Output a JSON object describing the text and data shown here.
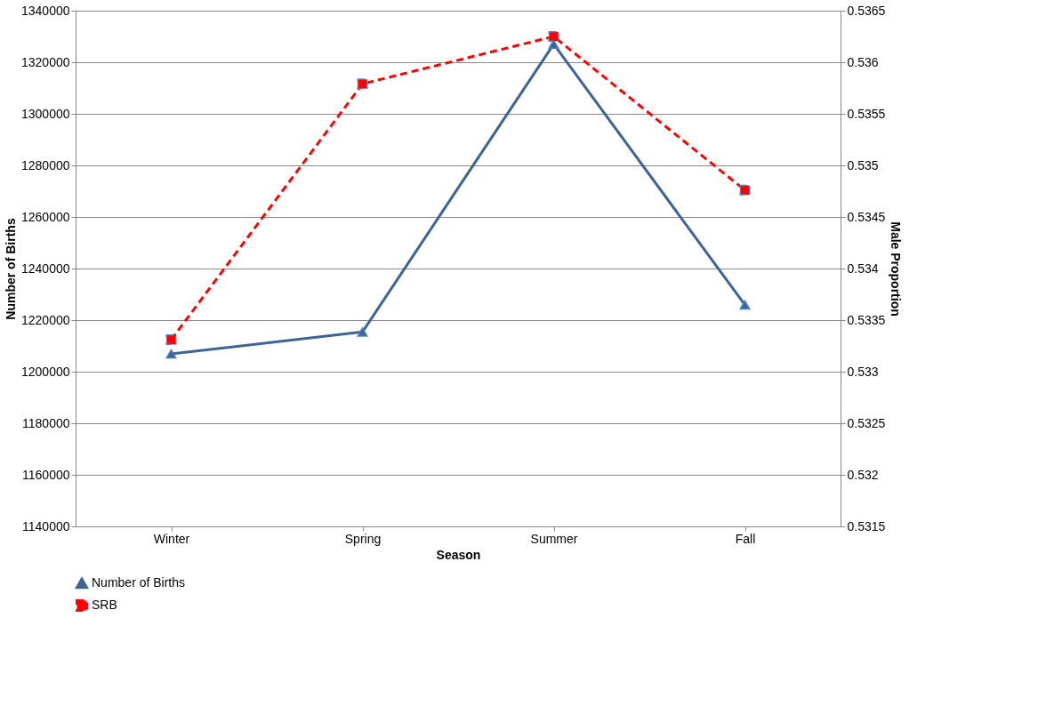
{
  "chart_data": {
    "type": "line",
    "xlabel": "Season",
    "ylabel": "Number of Births",
    "y2label": "Male Proportion",
    "categories": [
      "Winter",
      "Spring",
      "Summer",
      "Fall"
    ],
    "series": [
      {
        "name": "Number of Births",
        "color": "#3d6494",
        "values": [
          1206900,
          1215400,
          1327000,
          1225900
        ],
        "marker": "triangle",
        "line_style": "solid"
      },
      {
        "name": "SRB",
        "color": "#ff0000",
        "values": [
          0.53331,
          0.53579,
          0.53625,
          0.53476
        ],
        "axis": "y2",
        "marker": "square",
        "line_style": "dashed"
      }
    ],
    "ylim": [
      1140000,
      1340000
    ],
    "yticks": [
      1140000,
      1160000,
      1180000,
      1200000,
      1220000,
      1240000,
      1260000,
      1280000,
      1300000,
      1320000,
      1340000
    ],
    "y2lim": [
      0.5315,
      0.5365
    ],
    "y2ticks": [
      0.5315,
      0.532,
      0.5325,
      0.533,
      0.5335,
      0.534,
      0.5345,
      0.535,
      0.5355,
      0.536,
      0.5365
    ],
    "grid": "y",
    "legend": "bottom"
  }
}
